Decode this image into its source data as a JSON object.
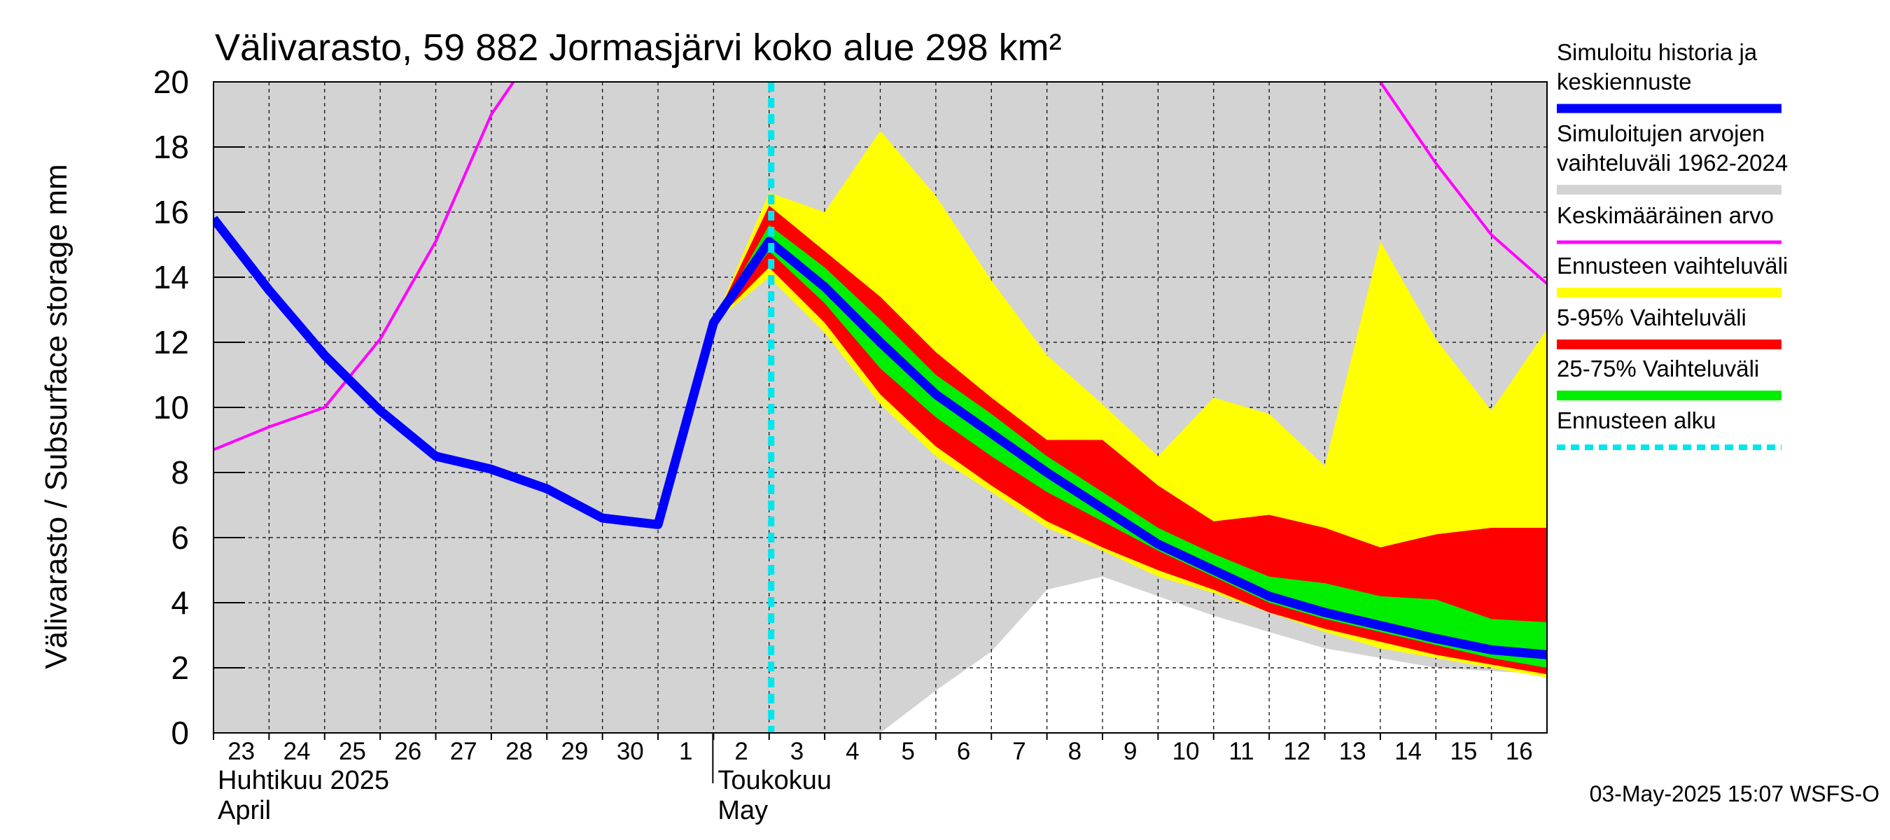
{
  "chart_data": {
    "type": "area",
    "title": "Välivarasto, 59 882 Jormasjärvi koko alue 298 km²",
    "ylabel": "Välivarasto / Subsurface storage  mm",
    "ylim": [
      0,
      20
    ],
    "yticks": [
      0,
      2,
      4,
      6,
      8,
      10,
      12,
      14,
      16,
      18,
      20
    ],
    "grid": true,
    "legend_position": "right",
    "day_ticks": [
      "23",
      "24",
      "25",
      "26",
      "27",
      "28",
      "29",
      "30",
      "1",
      "2",
      "3",
      "4",
      "5",
      "6",
      "7",
      "8",
      "9",
      "10",
      "11",
      "12",
      "13",
      "14",
      "15",
      "16"
    ],
    "month_labels": [
      {
        "fi": "Huhtikuu  2025",
        "en": "April",
        "start_index": 0
      },
      {
        "fi": "Toukokuu",
        "en": "May",
        "start_index": 9
      }
    ],
    "forecast_start_index": 10,
    "x_index": [
      0,
      1,
      2,
      3,
      4,
      5,
      6,
      7,
      8,
      9,
      10,
      11,
      12,
      13,
      14,
      15,
      16,
      17,
      18,
      19,
      20,
      21,
      22,
      23,
      24
    ],
    "historical_range": {
      "upper": [
        20,
        20,
        20,
        20,
        20,
        20,
        20,
        20,
        20,
        20,
        20,
        20,
        20,
        20,
        20,
        20,
        20,
        20,
        20,
        20,
        20,
        20,
        20,
        20,
        20
      ],
      "lower": [
        0,
        0,
        0,
        0,
        0,
        0,
        0,
        0,
        0,
        0,
        0,
        0,
        0,
        1.3,
        2.5,
        4.4,
        4.8,
        4.2,
        3.6,
        3.1,
        2.6,
        2.3,
        2.0,
        1.9,
        1.8
      ]
    },
    "mean_value": {
      "x": [
        0,
        1,
        2,
        3,
        4,
        5,
        6,
        20.9,
        21,
        22,
        23,
        24
      ],
      "y": [
        8.7,
        9.4,
        10.0,
        12.1,
        15.1,
        19.0,
        21.5,
        21.5,
        20.0,
        17.5,
        15.3,
        13.8
      ]
    },
    "forecast_range": {
      "x": [
        9,
        10,
        11,
        12,
        13,
        14,
        15,
        16,
        17,
        18,
        19,
        20,
        21,
        22,
        23,
        24
      ],
      "upper": [
        12.6,
        16.6,
        16.0,
        18.5,
        16.5,
        13.9,
        11.6,
        10.1,
        8.5,
        10.3,
        9.8,
        8.2,
        15.1,
        12.1,
        9.9,
        12.4
      ],
      "lower": [
        12.6,
        14.0,
        12.3,
        10.1,
        8.5,
        7.4,
        6.3,
        5.6,
        4.8,
        4.3,
        3.7,
        3.1,
        2.6,
        2.3,
        2.0,
        1.7
      ]
    },
    "range_5_95": {
      "x": [
        9,
        10,
        11,
        12,
        13,
        14,
        15,
        16,
        17,
        18,
        19,
        20,
        21,
        22,
        23,
        24
      ],
      "upper": [
        12.6,
        16.2,
        14.8,
        13.4,
        11.7,
        10.3,
        9.0,
        9.0,
        7.6,
        6.5,
        6.7,
        6.3,
        5.7,
        6.1,
        6.3,
        6.3
      ],
      "lower": [
        12.6,
        14.3,
        12.6,
        10.4,
        8.8,
        7.6,
        6.5,
        5.7,
        5.0,
        4.4,
        3.7,
        3.2,
        2.8,
        2.4,
        2.1,
        1.8
      ]
    },
    "range_25_75": {
      "x": [
        9,
        10,
        11,
        12,
        13,
        14,
        15,
        16,
        17,
        18,
        19,
        20,
        21,
        22,
        23,
        24
      ],
      "upper": [
        12.6,
        15.6,
        14.3,
        12.7,
        11.0,
        9.8,
        8.5,
        7.4,
        6.3,
        5.5,
        4.8,
        4.6,
        4.2,
        4.1,
        3.5,
        3.4
      ],
      "lower": [
        12.6,
        14.8,
        13.2,
        11.2,
        9.7,
        8.5,
        7.4,
        6.5,
        5.6,
        4.8,
        4.0,
        3.5,
        3.1,
        2.7,
        2.3,
        2.0
      ]
    },
    "simulated_median": {
      "x": [
        0,
        1,
        2,
        3,
        4,
        5,
        6,
        7,
        8,
        9,
        10,
        11,
        12,
        13,
        14,
        15,
        16,
        17,
        18,
        19,
        20,
        21,
        22,
        23,
        24
      ],
      "y": [
        15.8,
        13.6,
        11.6,
        9.9,
        8.5,
        8.1,
        7.5,
        6.6,
        6.4,
        12.6,
        15.1,
        13.7,
        12.0,
        10.4,
        9.2,
        8.0,
        6.9,
        5.8,
        5.0,
        4.2,
        3.7,
        3.3,
        2.9,
        2.55,
        2.4
      ]
    },
    "legend": [
      {
        "key": "simulated_median",
        "label_lines": [
          "Simuloitu historia ja",
          "keskiennuste"
        ],
        "color": "#0000ff",
        "style": "thick"
      },
      {
        "key": "historical_range",
        "label_lines": [
          "Simuloitujen arvojen",
          "vaihteluväli 1962-2024"
        ],
        "color": "#d3d3d3",
        "style": "band"
      },
      {
        "key": "mean_value",
        "label_lines": [
          "Keskimääräinen arvo"
        ],
        "color": "#ff00ff",
        "style": "thin"
      },
      {
        "key": "forecast_range",
        "label_lines": [
          "Ennusteen vaihteluväli"
        ],
        "color": "#ffff00",
        "style": "band"
      },
      {
        "key": "range_5_95",
        "label_lines": [
          "5-95% Vaihteluväli"
        ],
        "color": "#ff0000",
        "style": "band"
      },
      {
        "key": "range_25_75",
        "label_lines": [
          "25-75% Vaihteluväli"
        ],
        "color": "#00ee00",
        "style": "band"
      },
      {
        "key": "forecast_start",
        "label_lines": [
          "Ennusteen alku"
        ],
        "color": "#00e5ee",
        "style": "dashed"
      }
    ],
    "footer": "03-May-2025 15:07 WSFS-O"
  }
}
